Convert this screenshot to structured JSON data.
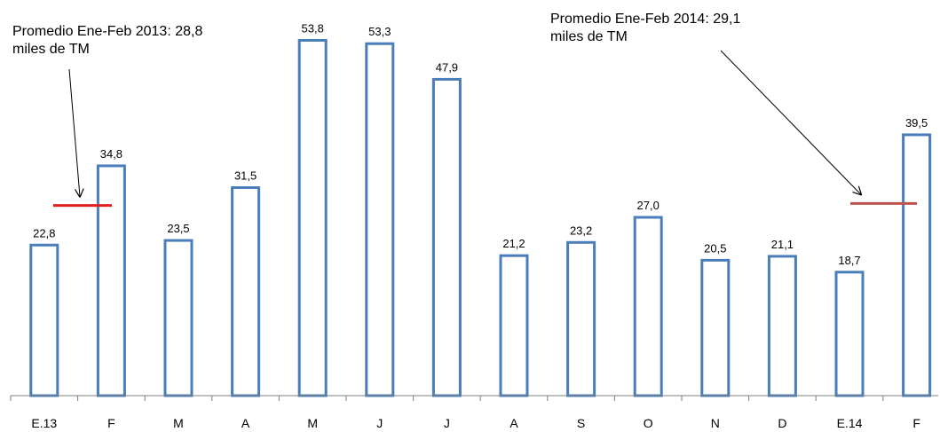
{
  "chart_data": {
    "type": "bar",
    "categories": [
      "E.13",
      "F",
      "M",
      "A",
      "M",
      "J",
      "J",
      "A",
      "S",
      "O",
      "N",
      "D",
      "E.14",
      "F"
    ],
    "values": [
      22.8,
      34.8,
      23.5,
      31.5,
      53.8,
      53.3,
      47.9,
      21.2,
      23.2,
      27.0,
      20.5,
      21.1,
      18.7,
      39.5
    ],
    "value_labels": [
      "22,8",
      "34,8",
      "23,5",
      "31,5",
      "53,8",
      "53,3",
      "47,9",
      "21,2",
      "23,2",
      "27,0",
      "20,5",
      "21,1",
      "18,7",
      "39,5"
    ],
    "ylim": [
      0,
      54
    ],
    "grid": false,
    "bar_color": "#4a7ebb",
    "annotations": [
      {
        "lines": [
          "Promedio Ene-Feb 2013:  28,8",
          "miles de TM"
        ],
        "value": 28.8,
        "categories": [
          "E.13",
          "F"
        ],
        "line_color": "#e02020"
      },
      {
        "lines": [
          "Promedio Ene-Feb 2014:  29,1",
          "miles de TM"
        ],
        "value": 29.1,
        "categories": [
          "E.14",
          "F"
        ],
        "line_color": "#c0504d"
      }
    ]
  }
}
